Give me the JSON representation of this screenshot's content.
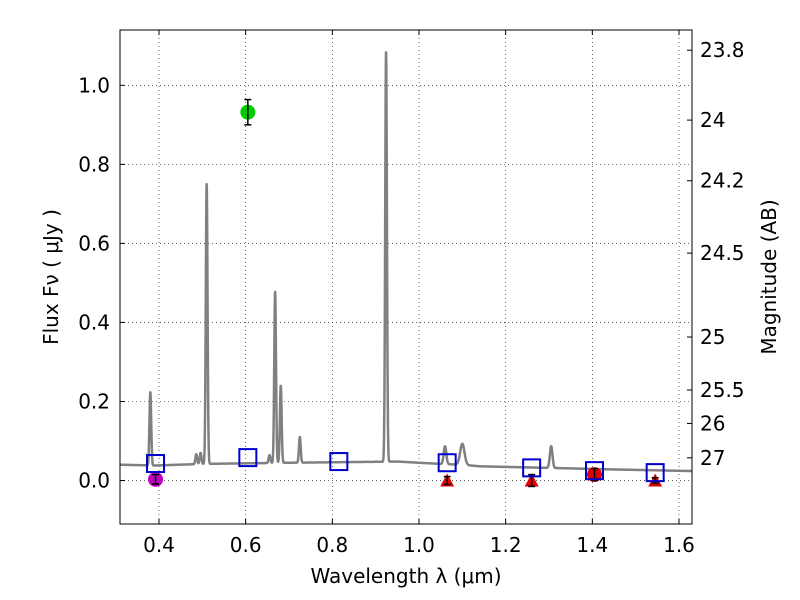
{
  "chart_data": {
    "type": "scatter",
    "xlabel": "Wavelength  λ (μm)",
    "ylabel": "Flux  Fν ( μJy )",
    "y2label": "Magnitude (AB)",
    "xlim": [
      0.31,
      1.63
    ],
    "ylim": [
      -0.11,
      1.14
    ],
    "grid": true,
    "xticks": [
      {
        "v": 0.4,
        "label": "0.4"
      },
      {
        "v": 0.6,
        "label": "0.6"
      },
      {
        "v": 0.8,
        "label": "0.8"
      },
      {
        "v": 1.0,
        "label": "1.0"
      },
      {
        "v": 1.2,
        "label": "1.2"
      },
      {
        "v": 1.4,
        "label": "1.4"
      },
      {
        "v": 1.6,
        "label": "1.6"
      }
    ],
    "yticks": [
      {
        "v": 0.0,
        "label": "0.0"
      },
      {
        "v": 0.2,
        "label": "0.2"
      },
      {
        "v": 0.4,
        "label": "0.4"
      },
      {
        "v": 0.6,
        "label": "0.6"
      },
      {
        "v": 0.8,
        "label": "0.8"
      },
      {
        "v": 1.0,
        "label": "1.0"
      }
    ],
    "y2ticks": [
      {
        "flux": 1.0889,
        "label": "23.8"
      },
      {
        "flux": 0.912,
        "label": "24"
      },
      {
        "flux": 0.7586,
        "label": "24.2"
      },
      {
        "flux": 0.5754,
        "label": "24.5"
      },
      {
        "flux": 0.3631,
        "label": "25"
      },
      {
        "flux": 0.2291,
        "label": "25.5"
      },
      {
        "flux": 0.1445,
        "label": "26"
      },
      {
        "flux": 0.0575,
        "label": "27"
      }
    ],
    "colors": {
      "spectrum": "#808080",
      "model": "#0000cc",
      "magenta": "#bf00bf",
      "green": "#00cc00",
      "red": "#e00000",
      "errorbar": "#000000"
    },
    "spectrum": {
      "continuum": [
        [
          0.31,
          0.04
        ],
        [
          0.39,
          0.038
        ],
        [
          0.5,
          0.042
        ],
        [
          0.7,
          0.045
        ],
        [
          0.95,
          0.048
        ],
        [
          1.05,
          0.042
        ],
        [
          1.1,
          0.04
        ],
        [
          1.14,
          0.036
        ],
        [
          1.3,
          0.032
        ],
        [
          1.45,
          0.028
        ],
        [
          1.63,
          0.024
        ]
      ],
      "lines": [
        {
          "x": 0.38,
          "h": 0.185,
          "w": 0.002
        },
        {
          "x": 0.486,
          "h": 0.025,
          "w": 0.002
        },
        {
          "x": 0.496,
          "h": 0.028,
          "w": 0.002
        },
        {
          "x": 0.51,
          "h": 0.708,
          "w": 0.002
        },
        {
          "x": 0.655,
          "h": 0.02,
          "w": 0.002
        },
        {
          "x": 0.668,
          "h": 0.433,
          "w": 0.002
        },
        {
          "x": 0.681,
          "h": 0.195,
          "w": 0.002
        },
        {
          "x": 0.725,
          "h": 0.065,
          "w": 0.002
        },
        {
          "x": 0.924,
          "h": 1.038,
          "w": 0.002
        },
        {
          "x": 1.06,
          "h": 0.045,
          "w": 0.003
        },
        {
          "x": 1.1,
          "h": 0.053,
          "w": 0.005
        },
        {
          "x": 1.305,
          "h": 0.055,
          "w": 0.003
        }
      ]
    },
    "model_points": [
      {
        "x": 0.392,
        "y": 0.043
      },
      {
        "x": 0.605,
        "y": 0.058
      },
      {
        "x": 0.815,
        "y": 0.048
      },
      {
        "x": 1.065,
        "y": 0.045
      },
      {
        "x": 1.26,
        "y": 0.032
      },
      {
        "x": 1.405,
        "y": 0.025
      },
      {
        "x": 1.545,
        "y": 0.02
      }
    ],
    "observed": [
      {
        "x": 0.392,
        "y": 0.003,
        "err": 0.012,
        "color": "magenta",
        "marker": "circle"
      },
      {
        "x": 0.605,
        "y": 0.932,
        "err": 0.032,
        "color": "green",
        "marker": "circle"
      },
      {
        "x": 1.405,
        "y": 0.015,
        "err": 0.015,
        "color": "red",
        "marker": "circle"
      }
    ],
    "upper_limits": [
      {
        "x": 1.065,
        "y": 0.0,
        "err": 0.01
      },
      {
        "x": 1.26,
        "y": 0.0,
        "err": 0.015
      },
      {
        "x": 1.545,
        "y": 0.0,
        "err": 0.007
      }
    ]
  }
}
